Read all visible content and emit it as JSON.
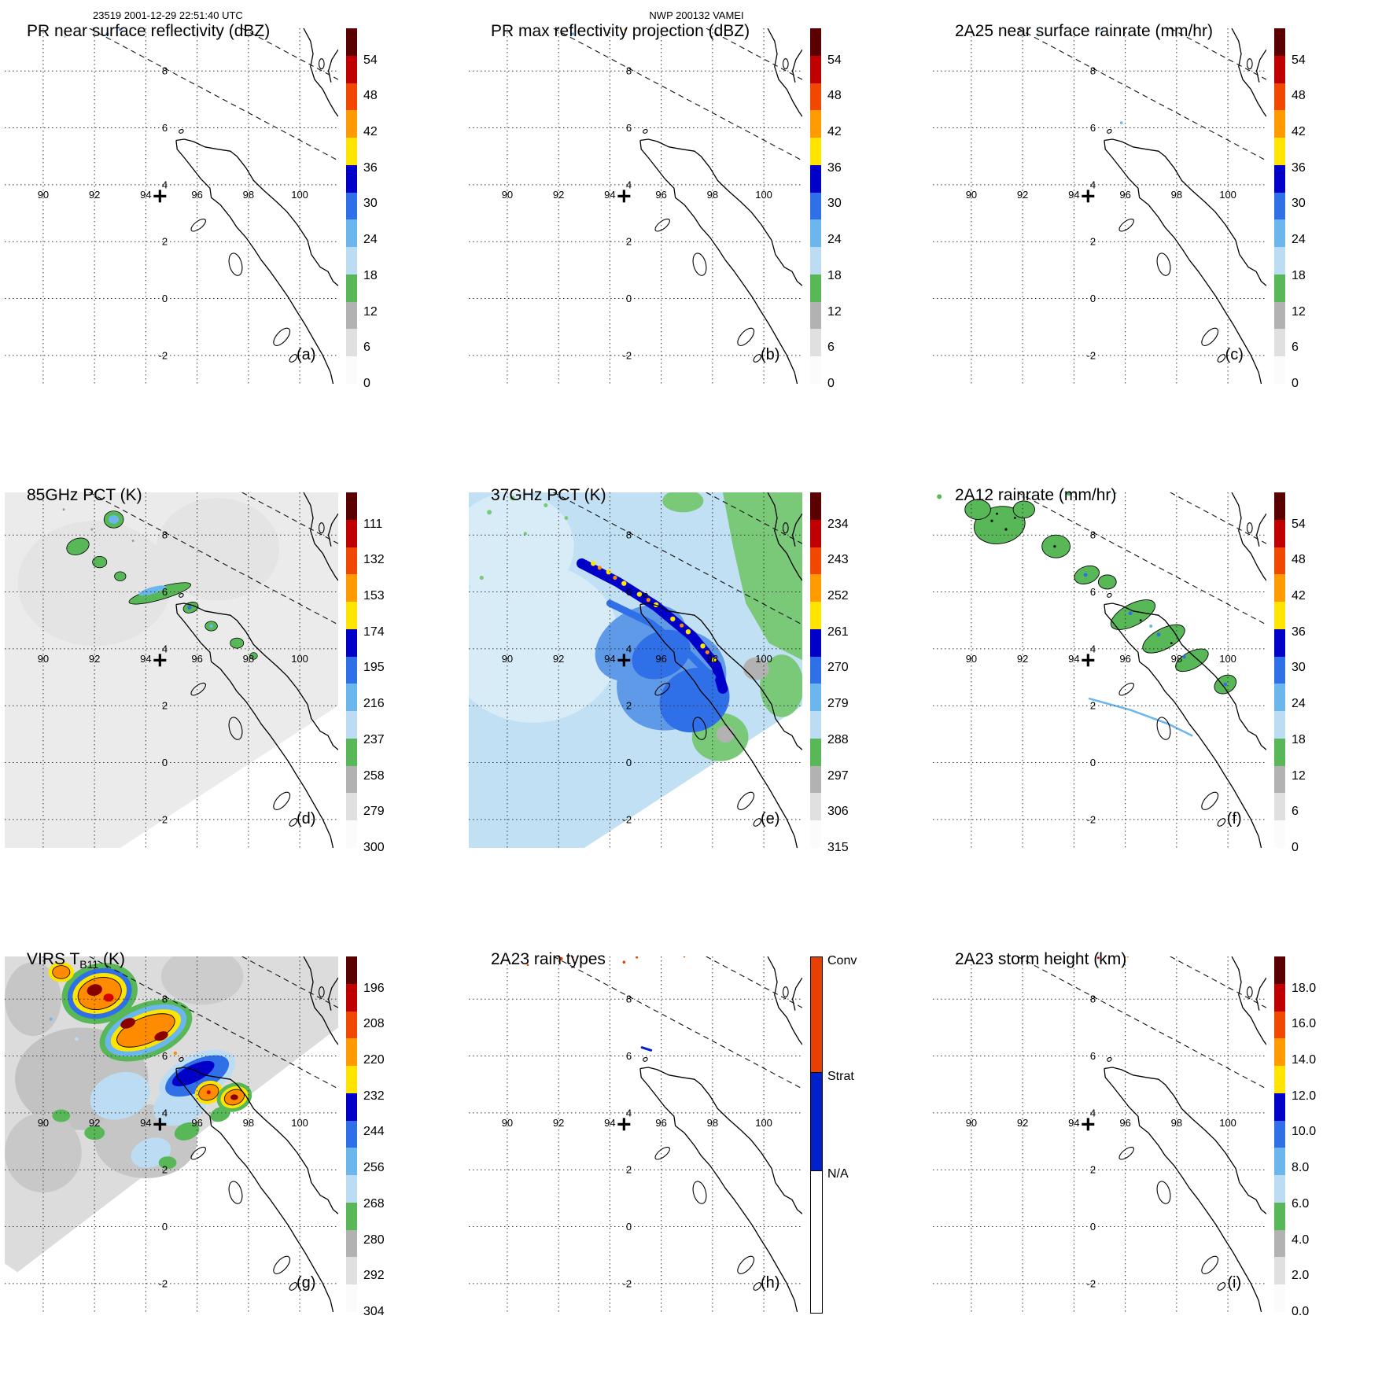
{
  "header": {
    "left": "23519 2001-12-29 22:51:40 UTC",
    "center": "NWP 200132 VAMEI"
  },
  "map": {
    "lon_ticks": [
      90,
      92,
      94,
      96,
      98,
      100
    ],
    "lat_ticks": [
      8,
      6,
      4,
      2,
      0,
      -2
    ],
    "lon_range": [
      88.5,
      101.5
    ],
    "lat_range": [
      -3,
      9.5
    ],
    "plus_marker_lonlat": [
      94.5,
      3.6
    ]
  },
  "colors": {
    "black": "#000000",
    "white": "#ffffff",
    "green": "#58b858",
    "green_soft": "#79c979",
    "blue_dark": "#0000c8",
    "blue": "#2f6fe8",
    "blue_mid": "#5f9ae8",
    "blue_light": "#6cb6ee",
    "blue_pale": "#bcdcf4",
    "sky": "#c2e0f4",
    "sky_light": "#d8ecf8",
    "yellow": "#ffe400",
    "orange": "#ff8c00",
    "orange_red": "#e84000",
    "red": "#d80000",
    "dark_red": "#8a0000",
    "maroon": "#5a0000",
    "gray_field": "#ebebeb",
    "gray_light": "#e0e0e0",
    "gray": "#b2b2b2",
    "gray_mid": "#c6c6c6",
    "gray_dark": "#9a9a9a",
    "conv": "#e84000",
    "strat": "#0020cc"
  },
  "palettes": {
    "rain": [
      "#5a0000",
      "#c00000",
      "#f04800",
      "#ff9a00",
      "#ffe400",
      "#0000c8",
      "#2f6fe8",
      "#6cb6ee",
      "#bcdcf4",
      "#58b858",
      "#b2b2b2",
      "#e0e0e0",
      "#fbfbfb"
    ],
    "raintype": {
      "colors": [
        "#e84000",
        "#0020cc",
        "#ffffff"
      ],
      "fracs": [
        0.325,
        0.275,
        0.4
      ]
    }
  },
  "panels": [
    {
      "id": "a",
      "letter": "(a)",
      "title_pre": "PR near surface reflectivity (dBZ)",
      "title_sub": "",
      "title_post": "",
      "colorbar": {
        "palette": "rain",
        "labels": [
          "54",
          "48",
          "42",
          "36",
          "30",
          "24",
          "18",
          "12",
          "6",
          "0"
        ]
      }
    },
    {
      "id": "b",
      "letter": "(b)",
      "title_pre": "PR max reflectivity projection (dBZ)",
      "title_sub": "",
      "title_post": "",
      "colorbar": {
        "palette": "rain",
        "labels": [
          "54",
          "48",
          "42",
          "36",
          "30",
          "24",
          "18",
          "12",
          "6",
          "0"
        ]
      }
    },
    {
      "id": "c",
      "letter": "(c)",
      "title_pre": "2A25 near surface rainrate (mm/hr)",
      "title_sub": "",
      "title_post": "",
      "colorbar": {
        "palette": "rain",
        "labels": [
          "54",
          "48",
          "42",
          "36",
          "30",
          "24",
          "18",
          "12",
          "6",
          "0"
        ]
      }
    },
    {
      "id": "d",
      "letter": "(d)",
      "title_pre": "85GHz PCT (K)",
      "title_sub": "",
      "title_post": "",
      "colorbar": {
        "palette": "rain",
        "labels": [
          "111",
          "132",
          "153",
          "174",
          "195",
          "216",
          "237",
          "258",
          "279",
          "300"
        ]
      }
    },
    {
      "id": "e",
      "letter": "(e)",
      "title_pre": "37GHz PCT (K)",
      "title_sub": "",
      "title_post": "",
      "colorbar": {
        "palette": "rain",
        "labels": [
          "234",
          "243",
          "252",
          "261",
          "270",
          "279",
          "288",
          "297",
          "306",
          "315"
        ]
      }
    },
    {
      "id": "f",
      "letter": "(f)",
      "title_pre": "2A12 rainrate (mm/hr)",
      "title_sub": "",
      "title_post": "",
      "colorbar": {
        "palette": "rain",
        "labels": [
          "54",
          "48",
          "42",
          "36",
          "30",
          "24",
          "18",
          "12",
          "6",
          "0"
        ]
      }
    },
    {
      "id": "g",
      "letter": "(g)",
      "title_pre": "VIRS T",
      "title_sub": "B11",
      "title_post": " (K)",
      "colorbar": {
        "palette": "rain",
        "labels": [
          "196",
          "208",
          "220",
          "232",
          "244",
          "256",
          "268",
          "280",
          "292",
          "304"
        ]
      }
    },
    {
      "id": "h",
      "letter": "(h)",
      "title_pre": "2A23 rain types",
      "title_sub": "",
      "title_post": "",
      "colorbar": {
        "palette": "raintype",
        "labels": [
          "Conv",
          "Strat",
          "N/A"
        ]
      }
    },
    {
      "id": "i",
      "letter": "(i)",
      "title_pre": "2A23 storm height (km)",
      "title_sub": "",
      "title_post": "",
      "colorbar": {
        "palette": "rain",
        "labels": [
          "18.0",
          "16.0",
          "14.0",
          "12.0",
          "10.0",
          "8.0",
          "6.0",
          "4.0",
          "2.0",
          "0.0"
        ]
      }
    }
  ],
  "chart_data": [
    {
      "panel": "a",
      "type": "heatmap",
      "title": "PR near surface reflectivity (dBZ)",
      "units": "dBZ",
      "colorbar_ticks": [
        0,
        6,
        12,
        18,
        24,
        30,
        36,
        42,
        48,
        54
      ],
      "lon_range": [
        88.5,
        101.5
      ],
      "lat_range": [
        -3,
        9.5
      ],
      "lon_gridlines": [
        90,
        92,
        94,
        96,
        98,
        100
      ],
      "lat_gridlines": [
        -2,
        0,
        2,
        4,
        6,
        8
      ]
    },
    {
      "panel": "b",
      "type": "heatmap",
      "title": "PR max reflectivity projection (dBZ)",
      "units": "dBZ",
      "colorbar_ticks": [
        0,
        6,
        12,
        18,
        24,
        30,
        36,
        42,
        48,
        54
      ],
      "lon_range": [
        88.5,
        101.5
      ],
      "lat_range": [
        -3,
        9.5
      ]
    },
    {
      "panel": "c",
      "type": "heatmap",
      "title": "2A25 near surface rainrate (mm/hr)",
      "units": "mm/hr",
      "colorbar_ticks": [
        0,
        6,
        12,
        18,
        24,
        30,
        36,
        42,
        48,
        54
      ],
      "lon_range": [
        88.5,
        101.5
      ],
      "lat_range": [
        -3,
        9.5
      ]
    },
    {
      "panel": "d",
      "type": "heatmap",
      "title": "85GHz PCT (K)",
      "units": "K",
      "colorbar_ticks": [
        111,
        132,
        153,
        174,
        195,
        216,
        237,
        258,
        279,
        300
      ],
      "lon_range": [
        88.5,
        101.5
      ],
      "lat_range": [
        -3,
        9.5
      ]
    },
    {
      "panel": "e",
      "type": "heatmap",
      "title": "37GHz PCT (K)",
      "units": "K",
      "colorbar_ticks": [
        234,
        243,
        252,
        261,
        270,
        279,
        288,
        297,
        306,
        315
      ],
      "lon_range": [
        88.5,
        101.5
      ],
      "lat_range": [
        -3,
        9.5
      ]
    },
    {
      "panel": "f",
      "type": "heatmap",
      "title": "2A12 rainrate (mm/hr)",
      "units": "mm/hr",
      "colorbar_ticks": [
        0,
        6,
        12,
        18,
        24,
        30,
        36,
        42,
        48,
        54
      ],
      "lon_range": [
        88.5,
        101.5
      ],
      "lat_range": [
        -3,
        9.5
      ]
    },
    {
      "panel": "g",
      "type": "heatmap",
      "title": "VIRS TB11 (K)",
      "units": "K",
      "colorbar_ticks": [
        196,
        208,
        220,
        232,
        244,
        256,
        268,
        280,
        292,
        304
      ],
      "lon_range": [
        88.5,
        101.5
      ],
      "lat_range": [
        -3,
        9.5
      ]
    },
    {
      "panel": "h",
      "type": "heatmap",
      "title": "2A23 rain types",
      "categories": [
        "Conv",
        "Strat",
        "N/A"
      ],
      "lon_range": [
        88.5,
        101.5
      ],
      "lat_range": [
        -3,
        9.5
      ]
    },
    {
      "panel": "i",
      "type": "heatmap",
      "title": "2A23 storm height (km)",
      "units": "km",
      "colorbar_ticks": [
        0,
        2,
        4,
        6,
        8,
        10,
        12,
        14,
        16,
        18
      ],
      "lon_range": [
        88.5,
        101.5
      ],
      "lat_range": [
        -3,
        9.5
      ]
    }
  ]
}
